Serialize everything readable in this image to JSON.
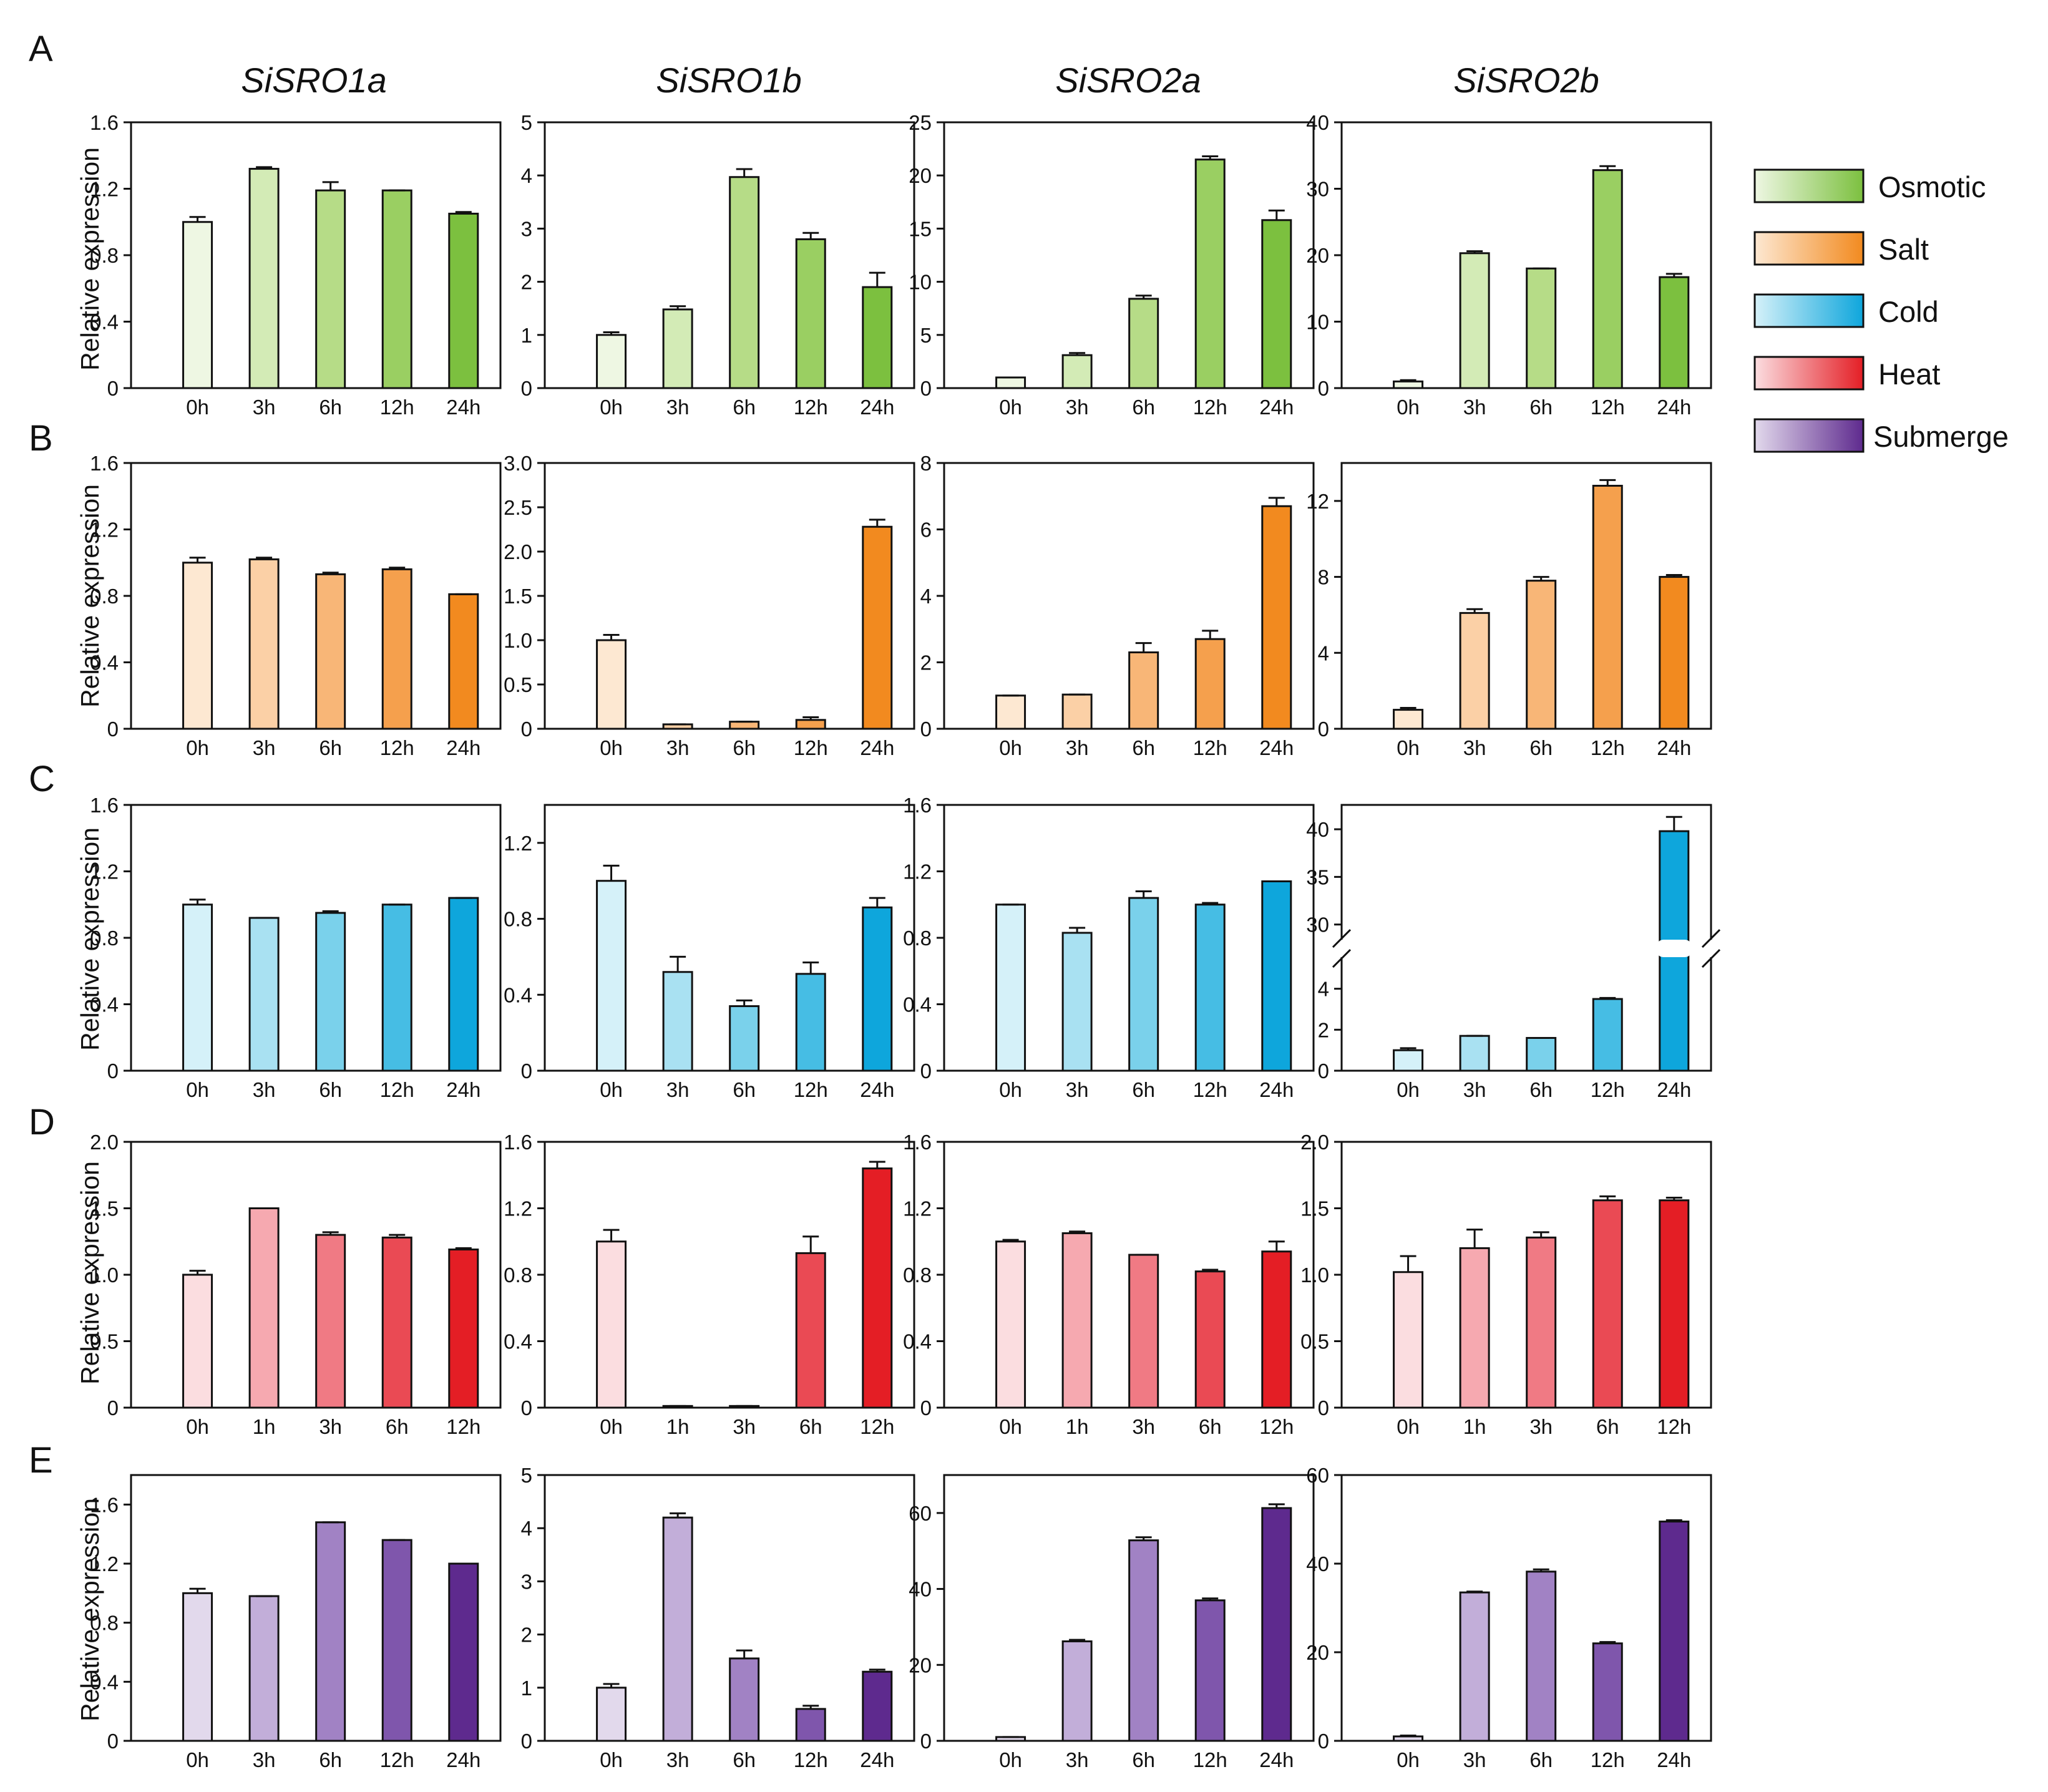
{
  "figure": {
    "row_labels": [
      "A",
      "B",
      "C",
      "D",
      "E"
    ],
    "gene_titles": [
      "SiSRO1a",
      "SiSRO1b",
      "SiSRO2a",
      "SiSRO2b"
    ],
    "ylabel": "Relative expression"
  },
  "legend": [
    {
      "label": "Osmotic",
      "color_light": "#eef7e3",
      "color_dark": "#7cc03f"
    },
    {
      "label": "Salt",
      "color_light": "#fde8d2",
      "color_dark": "#f28a1f"
    },
    {
      "label": "Cold",
      "color_light": "#d5f1f9",
      "color_dark": "#0ea6dc"
    },
    {
      "label": "Heat",
      "color_light": "#fbdde0",
      "color_dark": "#e41e25"
    },
    {
      "label": "Submerge",
      "color_light": "#e2d9ec",
      "color_dark": "#5e2a8e"
    }
  ],
  "chart_data": [
    {
      "type": "bar",
      "row": "A",
      "treatment": "Osmotic",
      "title": "SiSRO1a",
      "ylabel": "Relative expression",
      "categories": [
        "0h",
        "3h",
        "6h",
        "12h",
        "24h"
      ],
      "values": [
        1.0,
        1.32,
        1.19,
        1.19,
        1.05
      ],
      "errors": [
        0.03,
        0.01,
        0.05,
        0.0,
        0.01
      ],
      "ylim": [
        0,
        1.6
      ],
      "yticks": [
        "0",
        "0.4",
        "0.8",
        "1.2",
        "1.6"
      ],
      "colors": [
        "#eef7e3",
        "#d3ebb6",
        "#b6dc87",
        "#9acf62",
        "#7cc03f"
      ]
    },
    {
      "type": "bar",
      "row": "A",
      "treatment": "Osmotic",
      "title": "SiSRO1b",
      "categories": [
        "0h",
        "3h",
        "6h",
        "12h",
        "24h"
      ],
      "values": [
        1.0,
        1.48,
        3.97,
        2.8,
        1.9
      ],
      "errors": [
        0.05,
        0.06,
        0.15,
        0.12,
        0.27
      ],
      "ylim": [
        0,
        5
      ],
      "yticks": [
        "0",
        "1",
        "2",
        "3",
        "4",
        "5"
      ],
      "colors": [
        "#eef7e3",
        "#d3ebb6",
        "#b6dc87",
        "#9acf62",
        "#7cc03f"
      ]
    },
    {
      "type": "bar",
      "row": "A",
      "treatment": "Osmotic",
      "title": "SiSRO2a",
      "categories": [
        "0h",
        "3h",
        "6h",
        "12h",
        "24h"
      ],
      "values": [
        1.0,
        3.1,
        8.4,
        21.5,
        15.8
      ],
      "errors": [
        0.0,
        0.2,
        0.3,
        0.3,
        0.9
      ],
      "ylim": [
        0,
        25
      ],
      "yticks": [
        "0",
        "5",
        "10",
        "15",
        "20",
        "25"
      ],
      "colors": [
        "#eef7e3",
        "#d3ebb6",
        "#b6dc87",
        "#9acf62",
        "#7cc03f"
      ]
    },
    {
      "type": "bar",
      "row": "A",
      "treatment": "Osmotic",
      "title": "SiSRO2b",
      "categories": [
        "0h",
        "3h",
        "6h",
        "12h",
        "24h"
      ],
      "values": [
        1.0,
        20.3,
        18.0,
        32.8,
        16.7
      ],
      "errors": [
        0.2,
        0.3,
        0.0,
        0.6,
        0.5
      ],
      "ylim": [
        0,
        40
      ],
      "yticks": [
        "0",
        "10",
        "20",
        "30",
        "40"
      ],
      "colors": [
        "#eef7e3",
        "#d3ebb6",
        "#b6dc87",
        "#9acf62",
        "#7cc03f"
      ]
    },
    {
      "type": "bar",
      "row": "B",
      "treatment": "Salt",
      "title": "SiSRO1a",
      "ylabel": "Relative expression",
      "categories": [
        "0h",
        "3h",
        "6h",
        "12h",
        "24h"
      ],
      "values": [
        1.0,
        1.02,
        0.93,
        0.96,
        0.81
      ],
      "errors": [
        0.03,
        0.01,
        0.01,
        0.01,
        0.0
      ],
      "ylim": [
        0,
        1.6
      ],
      "yticks": [
        "0",
        "0.4",
        "0.8",
        "1.2",
        "1.6"
      ],
      "colors": [
        "#fde8d2",
        "#fbd0a6",
        "#f8b677",
        "#f5a04d",
        "#f28a1f"
      ]
    },
    {
      "type": "bar",
      "row": "B",
      "treatment": "Salt",
      "title": "SiSRO1b",
      "categories": [
        "0h",
        "3h",
        "6h",
        "12h",
        "24h"
      ],
      "values": [
        1.0,
        0.05,
        0.08,
        0.1,
        2.28
      ],
      "errors": [
        0.06,
        0.0,
        0.0,
        0.03,
        0.08
      ],
      "ylim": [
        0,
        3.0
      ],
      "yticks": [
        "0",
        "0.5",
        "1.0",
        "1.5",
        "2.0",
        "2.5",
        "3.0"
      ],
      "colors": [
        "#fde8d2",
        "#fbd0a6",
        "#f8b677",
        "#f5a04d",
        "#f28a1f"
      ]
    },
    {
      "type": "bar",
      "row": "B",
      "treatment": "Salt",
      "title": "SiSRO2a",
      "categories": [
        "0h",
        "3h",
        "6h",
        "12h",
        "24h"
      ],
      "values": [
        1.0,
        1.03,
        2.3,
        2.7,
        6.7
      ],
      "errors": [
        0.0,
        0.0,
        0.28,
        0.25,
        0.25
      ],
      "ylim": [
        0,
        8
      ],
      "yticks": [
        "0",
        "2",
        "4",
        "6",
        "8"
      ],
      "colors": [
        "#fde8d2",
        "#fbd0a6",
        "#f8b677",
        "#f5a04d",
        "#f28a1f"
      ]
    },
    {
      "type": "bar",
      "row": "B",
      "treatment": "Salt",
      "title": "SiSRO2b",
      "categories": [
        "0h",
        "3h",
        "6h",
        "12h",
        "24h"
      ],
      "values": [
        1.0,
        6.1,
        7.8,
        12.8,
        8.0
      ],
      "errors": [
        0.1,
        0.2,
        0.2,
        0.3,
        0.1
      ],
      "ylim": [
        0,
        14
      ],
      "yticks": [
        "0",
        "4",
        "8",
        "12"
      ],
      "colors": [
        "#fde8d2",
        "#fbd0a6",
        "#f8b677",
        "#f5a04d",
        "#f28a1f"
      ]
    },
    {
      "type": "bar",
      "row": "C",
      "treatment": "Cold",
      "title": "SiSRO1a",
      "ylabel": "Relative expression",
      "categories": [
        "0h",
        "3h",
        "6h",
        "12h",
        "24h"
      ],
      "values": [
        1.0,
        0.92,
        0.95,
        1.0,
        1.04
      ],
      "errors": [
        0.03,
        0.0,
        0.01,
        0.0,
        0.0
      ],
      "ylim": [
        0,
        1.6
      ],
      "yticks": [
        "0",
        "0.4",
        "0.8",
        "1.2",
        "1.6"
      ],
      "colors": [
        "#d5f1f9",
        "#a9e1f2",
        "#7ad1eb",
        "#46bde4",
        "#0ea6dc"
      ]
    },
    {
      "type": "bar",
      "row": "C",
      "treatment": "Cold",
      "title": "SiSRO1b",
      "categories": [
        "0h",
        "3h",
        "6h",
        "12h",
        "24h"
      ],
      "values": [
        1.0,
        0.52,
        0.34,
        0.51,
        0.86
      ],
      "errors": [
        0.08,
        0.08,
        0.03,
        0.06,
        0.05
      ],
      "ylim": [
        0,
        1.4
      ],
      "yticks": [
        "0",
        "0.4",
        "0.8",
        "1.2"
      ],
      "colors": [
        "#d5f1f9",
        "#a9e1f2",
        "#7ad1eb",
        "#46bde4",
        "#0ea6dc"
      ]
    },
    {
      "type": "bar",
      "row": "C",
      "treatment": "Cold",
      "title": "SiSRO2a",
      "categories": [
        "0h",
        "3h",
        "6h",
        "12h",
        "24h"
      ],
      "values": [
        1.0,
        0.83,
        1.04,
        1.0,
        1.14
      ],
      "errors": [
        0.0,
        0.03,
        0.04,
        0.01,
        0.0
      ],
      "ylim": [
        0,
        1.6
      ],
      "yticks": [
        "0",
        "0.4",
        "0.8",
        "1.2",
        "1.6"
      ],
      "colors": [
        "#d5f1f9",
        "#a9e1f2",
        "#7ad1eb",
        "#46bde4",
        "#0ea6dc"
      ]
    },
    {
      "type": "bar",
      "row": "C",
      "treatment": "Cold",
      "title": "SiSRO2b",
      "categories": [
        "0h",
        "3h",
        "6h",
        "12h",
        "24h"
      ],
      "values": [
        1.0,
        1.7,
        1.6,
        3.5,
        39.8
      ],
      "errors": [
        0.1,
        0.0,
        0.0,
        0.05,
        1.5
      ],
      "ylim": [
        0,
        42
      ],
      "axis_break": [
        4.8,
        30
      ],
      "yticks": [
        "0",
        "2",
        "4",
        "30",
        "35",
        "40"
      ],
      "colors": [
        "#d5f1f9",
        "#a9e1f2",
        "#7ad1eb",
        "#46bde4",
        "#0ea6dc"
      ]
    },
    {
      "type": "bar",
      "row": "D",
      "treatment": "Heat",
      "title": "SiSRO1a",
      "ylabel": "Relative expression",
      "categories": [
        "0h",
        "1h",
        "3h",
        "6h",
        "12h"
      ],
      "values": [
        1.0,
        1.5,
        1.3,
        1.28,
        1.19
      ],
      "errors": [
        0.03,
        0.0,
        0.02,
        0.02,
        0.01
      ],
      "ylim": [
        0,
        2.0
      ],
      "yticks": [
        "0",
        "0.5",
        "1.0",
        "1.5",
        "2.0"
      ],
      "colors": [
        "#fbdde0",
        "#f6a9b0",
        "#f07a84",
        "#ea4a54",
        "#e41e25"
      ]
    },
    {
      "type": "bar",
      "row": "D",
      "treatment": "Heat",
      "title": "SiSRO1b",
      "categories": [
        "0h",
        "1h",
        "3h",
        "6h",
        "12h"
      ],
      "values": [
        1.0,
        0.01,
        0.01,
        0.93,
        1.44
      ],
      "errors": [
        0.07,
        0.0,
        0.0,
        0.1,
        0.04
      ],
      "ylim": [
        0,
        1.6
      ],
      "yticks": [
        "0",
        "0.4",
        "0.8",
        "1.2",
        "1.6"
      ],
      "colors": [
        "#fbdde0",
        "#f6a9b0",
        "#f07a84",
        "#ea4a54",
        "#e41e25"
      ]
    },
    {
      "type": "bar",
      "row": "D",
      "treatment": "Heat",
      "title": "SiSRO2a",
      "categories": [
        "0h",
        "1h",
        "3h",
        "6h",
        "12h"
      ],
      "values": [
        1.0,
        1.05,
        0.92,
        0.82,
        0.94
      ],
      "errors": [
        0.01,
        0.01,
        0.0,
        0.01,
        0.06
      ],
      "ylim": [
        0,
        1.6
      ],
      "yticks": [
        "0",
        "0.4",
        "0.8",
        "1.2",
        "1.6"
      ],
      "colors": [
        "#fbdde0",
        "#f6a9b0",
        "#f07a84",
        "#ea4a54",
        "#e41e25"
      ]
    },
    {
      "type": "bar",
      "row": "D",
      "treatment": "Heat",
      "title": "SiSRO2b",
      "categories": [
        "0h",
        "1h",
        "3h",
        "6h",
        "12h"
      ],
      "values": [
        1.02,
        1.2,
        1.28,
        1.56,
        1.56
      ],
      "errors": [
        0.12,
        0.14,
        0.04,
        0.03,
        0.02
      ],
      "ylim": [
        0,
        2.0
      ],
      "yticks": [
        "0",
        "0.5",
        "1.0",
        "1.5",
        "2.0"
      ],
      "colors": [
        "#fbdde0",
        "#f6a9b0",
        "#f07a84",
        "#ea4a54",
        "#e41e25"
      ]
    },
    {
      "type": "bar",
      "row": "E",
      "treatment": "Submerge",
      "title": "SiSRO1a",
      "ylabel": "Relative expression",
      "categories": [
        "0h",
        "3h",
        "6h",
        "12h",
        "24h"
      ],
      "values": [
        1.0,
        0.98,
        1.48,
        1.36,
        1.2
      ],
      "errors": [
        0.03,
        0.0,
        0.0,
        0.0,
        0.0
      ],
      "ylim": [
        0,
        1.8
      ],
      "yticks": [
        "0",
        "0.4",
        "0.8",
        "1.2",
        "1.6"
      ],
      "colors": [
        "#e2d9ec",
        "#c2aed9",
        "#a182c4",
        "#7f56ac",
        "#5e2a8e"
      ]
    },
    {
      "type": "bar",
      "row": "E",
      "treatment": "Submerge",
      "title": "SiSRO1b",
      "categories": [
        "0h",
        "3h",
        "6h",
        "12h",
        "24h"
      ],
      "values": [
        1.0,
        4.2,
        1.55,
        0.6,
        1.3
      ],
      "errors": [
        0.07,
        0.08,
        0.15,
        0.06,
        0.04
      ],
      "ylim": [
        0,
        5
      ],
      "yticks": [
        "0",
        "1",
        "2",
        "3",
        "4",
        "5"
      ],
      "colors": [
        "#e2d9ec",
        "#c2aed9",
        "#a182c4",
        "#7f56ac",
        "#5e2a8e"
      ]
    },
    {
      "type": "bar",
      "row": "E",
      "treatment": "Submerge",
      "title": "SiSRO2a",
      "categories": [
        "0h",
        "3h",
        "6h",
        "12h",
        "24h"
      ],
      "values": [
        1.0,
        26.2,
        52.8,
        37.0,
        61.3
      ],
      "errors": [
        0.0,
        0.4,
        0.8,
        0.5,
        1.0
      ],
      "ylim": [
        0,
        70
      ],
      "yticks": [
        "0",
        "20",
        "40",
        "60"
      ],
      "colors": [
        "#e2d9ec",
        "#c2aed9",
        "#a182c4",
        "#7f56ac",
        "#5e2a8e"
      ]
    },
    {
      "type": "bar",
      "row": "E",
      "treatment": "Submerge",
      "title": "SiSRO2b",
      "categories": [
        "0h",
        "3h",
        "6h",
        "12h",
        "24h"
      ],
      "values": [
        1.0,
        33.5,
        38.2,
        22.0,
        49.5
      ],
      "errors": [
        0.2,
        0.2,
        0.5,
        0.3,
        0.3
      ],
      "ylim": [
        0,
        60
      ],
      "yticks": [
        "0",
        "20",
        "40",
        "60"
      ],
      "colors": [
        "#e2d9ec",
        "#c2aed9",
        "#a182c4",
        "#7f56ac",
        "#5e2a8e"
      ]
    }
  ]
}
